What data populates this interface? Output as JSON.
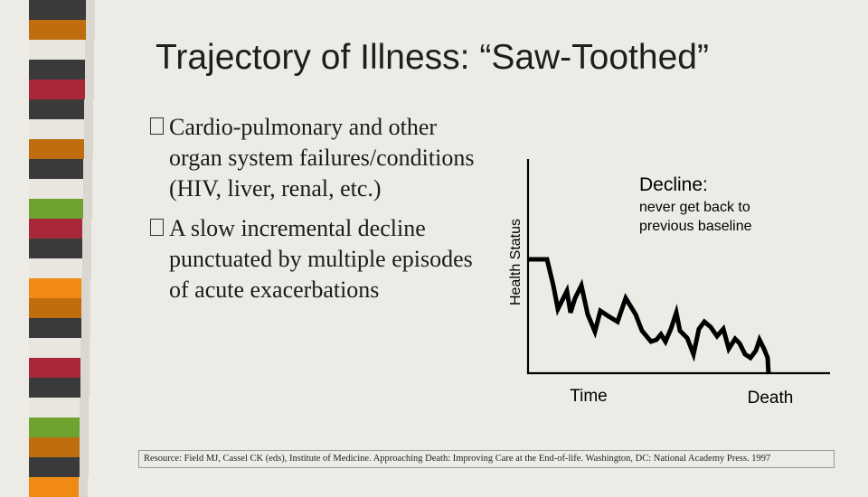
{
  "slide": {
    "title": "Trajectory of Illness: “Saw-Toothed”",
    "bullets": [
      {
        "text": "Cardio-pulmonary and other organ system failures/conditions (HIV, liver, renal, etc.)"
      },
      {
        "text": "A slow incremental decline punctuated by multiple episodes of acute exacerbations"
      }
    ],
    "reference": "Resource: Field MJ, Cassel CK (eds), Institute of Medicine. Approaching Death: Improving Care at the End-of-life. Washington, DC: National Academy Press. 1997"
  },
  "diagram": {
    "y_axis_label": "Health Status",
    "x_axis_label": "Time",
    "end_label": "Death",
    "annotation_title": "Decline:",
    "annotation_text_lines": [
      "never get back to",
      "previous baseline"
    ]
  },
  "colors": {
    "stripe_palette": [
      "#3a3a3a",
      "#e8e6df",
      "#a8283a",
      "#c06d0f",
      "#6ea32f",
      "#f08a14",
      "#ffffff"
    ]
  }
}
